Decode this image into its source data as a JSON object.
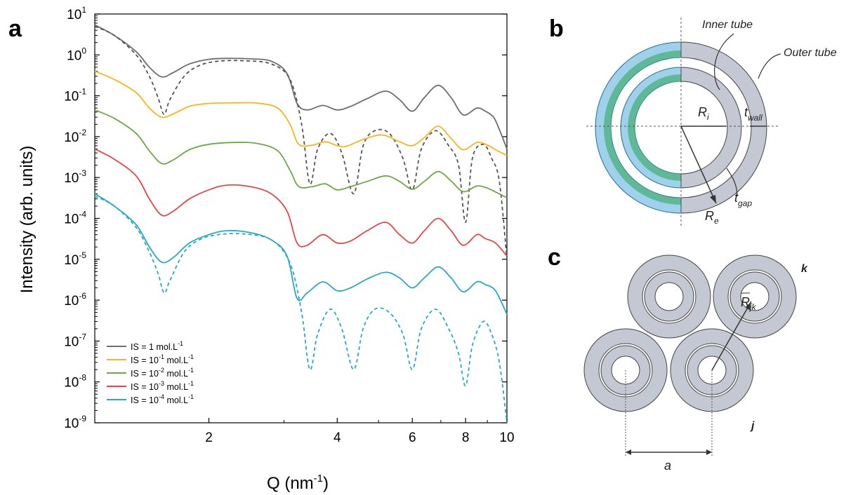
{
  "panels": {
    "a": "a",
    "b": "b",
    "c": "c"
  },
  "chart_data": {
    "type": "line",
    "x_scale": "log",
    "y_scale": "log",
    "xlim": [
      1.08,
      10
    ],
    "ylim": [
      1e-09,
      10
    ],
    "xlabel_main": "Q (nm",
    "xlabel_sup": "-1",
    "xlabel_end": ")",
    "ylabel": "Intensity (arb. units)",
    "x_ticks": [
      {
        "value": 2,
        "label": "2"
      },
      {
        "value": 4,
        "label": "4"
      },
      {
        "value": 6,
        "label": "6"
      },
      {
        "value": 8,
        "label": "8"
      },
      {
        "value": 10,
        "label": "10"
      }
    ],
    "y_ticks": [
      {
        "value": 10,
        "base": "10",
        "exp": "1"
      },
      {
        "value": 1,
        "base": "10",
        "exp": "0"
      },
      {
        "value": 0.1,
        "base": "10",
        "exp": "-1"
      },
      {
        "value": 0.01,
        "base": "10",
        "exp": "-2"
      },
      {
        "value": 0.001,
        "base": "10",
        "exp": "-3"
      },
      {
        "value": 0.0001,
        "base": "10",
        "exp": "-4"
      },
      {
        "value": 1e-05,
        "base": "10",
        "exp": "-5"
      },
      {
        "value": 1e-06,
        "base": "10",
        "exp": "-6"
      },
      {
        "value": 1e-07,
        "base": "10",
        "exp": "-7"
      },
      {
        "value": 1e-08,
        "base": "10",
        "exp": "-8"
      },
      {
        "value": 1e-09,
        "base": "10",
        "exp": "-9"
      }
    ],
    "legend_position": "bottom-left",
    "series": [
      {
        "name": "IS = 1 mol.L-1",
        "legend_pre": "IS = 1 mol.L",
        "legend_sup": "-1",
        "legend_mid": "",
        "legend_sup2": "",
        "color": "#6d6d6d",
        "dash": false,
        "points": [
          [
            1.08,
            5.4
          ],
          [
            1.2,
            3.0
          ],
          [
            1.35,
            1.2
          ],
          [
            1.45,
            0.5
          ],
          [
            1.55,
            0.29
          ],
          [
            1.65,
            0.37
          ],
          [
            1.8,
            0.6
          ],
          [
            2.0,
            0.78
          ],
          [
            2.2,
            0.82
          ],
          [
            2.5,
            0.8
          ],
          [
            2.8,
            0.7
          ],
          [
            3.05,
            0.35
          ],
          [
            3.22,
            0.065
          ],
          [
            3.4,
            0.045
          ],
          [
            3.7,
            0.058
          ],
          [
            4.0,
            0.045
          ],
          [
            4.3,
            0.055
          ],
          [
            4.7,
            0.085
          ],
          [
            5.2,
            0.13
          ],
          [
            5.6,
            0.08
          ],
          [
            6.0,
            0.042
          ],
          [
            6.4,
            0.09
          ],
          [
            6.9,
            0.18
          ],
          [
            7.4,
            0.09
          ],
          [
            7.9,
            0.034
          ],
          [
            8.5,
            0.05
          ],
          [
            8.9,
            0.042
          ],
          [
            9.3,
            0.03
          ],
          [
            9.6,
            0.015
          ],
          [
            10.0,
            0.005
          ]
        ]
      },
      {
        "name": "",
        "legend_pre": "",
        "legend_sup": "",
        "legend_mid": "",
        "legend_sup2": "",
        "color": "#555555",
        "dash": true,
        "points": [
          [
            1.08,
            5.0
          ],
          [
            1.2,
            3.0
          ],
          [
            1.35,
            1.0
          ],
          [
            1.45,
            0.3
          ],
          [
            1.52,
            0.09
          ],
          [
            1.57,
            0.035
          ],
          [
            1.62,
            0.08
          ],
          [
            1.75,
            0.3
          ],
          [
            1.9,
            0.55
          ],
          [
            2.1,
            0.7
          ],
          [
            2.4,
            0.72
          ],
          [
            2.8,
            0.6
          ],
          [
            3.1,
            0.25
          ],
          [
            3.3,
            0.02
          ],
          [
            3.45,
            0.0007
          ],
          [
            3.6,
            0.005
          ],
          [
            3.85,
            0.012
          ],
          [
            4.1,
            0.004
          ],
          [
            4.37,
            0.0004
          ],
          [
            4.6,
            0.006
          ],
          [
            4.9,
            0.014
          ],
          [
            5.3,
            0.012
          ],
          [
            5.7,
            0.003
          ],
          [
            6.0,
            0.0005
          ],
          [
            6.3,
            0.005
          ],
          [
            6.8,
            0.014
          ],
          [
            7.3,
            0.006
          ],
          [
            7.7,
            0.002
          ],
          [
            8.0,
            8e-05
          ],
          [
            8.3,
            0.003
          ],
          [
            8.8,
            0.0065
          ],
          [
            9.2,
            0.003
          ],
          [
            9.6,
            0.0008
          ],
          [
            10.0,
            1e-05
          ]
        ]
      },
      {
        "name": "IS = 10-1 mol.L-1",
        "legend_pre": "IS = 10",
        "legend_sup": "-1",
        "legend_mid": " mol.L",
        "legend_sup2": "-1",
        "color": "#f7b51a",
        "dash": false,
        "points": [
          [
            1.08,
            0.4
          ],
          [
            1.2,
            0.25
          ],
          [
            1.35,
            0.12
          ],
          [
            1.45,
            0.05
          ],
          [
            1.55,
            0.03
          ],
          [
            1.65,
            0.036
          ],
          [
            1.8,
            0.055
          ],
          [
            2.0,
            0.065
          ],
          [
            2.3,
            0.067
          ],
          [
            2.6,
            0.066
          ],
          [
            2.9,
            0.05
          ],
          [
            3.1,
            0.02
          ],
          [
            3.25,
            0.0065
          ],
          [
            3.5,
            0.0062
          ],
          [
            3.75,
            0.0075
          ],
          [
            4.0,
            0.006
          ],
          [
            4.2,
            0.0058
          ],
          [
            4.6,
            0.0085
          ],
          [
            5.1,
            0.011
          ],
          [
            5.6,
            0.0075
          ],
          [
            6.0,
            0.006
          ],
          [
            6.4,
            0.0095
          ],
          [
            6.9,
            0.018
          ],
          [
            7.4,
            0.009
          ],
          [
            7.9,
            0.0048
          ],
          [
            8.5,
            0.0072
          ],
          [
            9.0,
            0.0062
          ],
          [
            9.5,
            0.0045
          ],
          [
            10.0,
            0.0035
          ]
        ]
      },
      {
        "name": "IS = 10-2 mol.L-1",
        "legend_pre": "IS = 10",
        "legend_sup": "-2",
        "legend_mid": " mol.L",
        "legend_sup2": "-1",
        "color": "#6ea843",
        "dash": false,
        "points": [
          [
            1.08,
            0.045
          ],
          [
            1.2,
            0.028
          ],
          [
            1.35,
            0.012
          ],
          [
            1.45,
            0.0045
          ],
          [
            1.55,
            0.0022
          ],
          [
            1.65,
            0.0027
          ],
          [
            1.8,
            0.0048
          ],
          [
            2.0,
            0.0065
          ],
          [
            2.3,
            0.0072
          ],
          [
            2.6,
            0.0068
          ],
          [
            2.9,
            0.0045
          ],
          [
            3.1,
            0.0015
          ],
          [
            3.25,
            0.0006
          ],
          [
            3.5,
            0.0006
          ],
          [
            3.75,
            0.0007
          ],
          [
            4.0,
            0.0005
          ],
          [
            4.3,
            0.0006
          ],
          [
            4.7,
            0.0008
          ],
          [
            5.2,
            0.0011
          ],
          [
            5.6,
            0.0008
          ],
          [
            6.0,
            0.00052
          ],
          [
            6.4,
            0.0008
          ],
          [
            6.9,
            0.0014
          ],
          [
            7.4,
            0.00082
          ],
          [
            7.9,
            0.00045
          ],
          [
            8.5,
            0.00062
          ],
          [
            9.0,
            0.00055
          ],
          [
            9.5,
            0.00042
          ],
          [
            10.0,
            0.00032
          ]
        ]
      },
      {
        "name": "IS = 10-3 mol.L-1",
        "legend_pre": "IS = 10",
        "legend_sup": "-3",
        "legend_mid": " mol.L",
        "legend_sup2": "-1",
        "color": "#e8454a",
        "dash": false,
        "points": [
          [
            1.08,
            0.005
          ],
          [
            1.2,
            0.0028
          ],
          [
            1.35,
            0.0011
          ],
          [
            1.45,
            0.0003
          ],
          [
            1.55,
            0.00012
          ],
          [
            1.65,
            0.00015
          ],
          [
            1.8,
            0.0003
          ],
          [
            2.0,
            0.0005
          ],
          [
            2.2,
            0.00065
          ],
          [
            2.5,
            0.0006
          ],
          [
            2.8,
            0.0004
          ],
          [
            3.05,
            0.00015
          ],
          [
            3.22,
            2.5e-05
          ],
          [
            3.4,
            2.2e-05
          ],
          [
            3.7,
            4e-05
          ],
          [
            4.0,
            2.5e-05
          ],
          [
            4.3,
            2.8e-05
          ],
          [
            4.7,
            5e-05
          ],
          [
            5.2,
            8e-05
          ],
          [
            5.6,
            4e-05
          ],
          [
            6.0,
            2.5e-05
          ],
          [
            6.4,
            5e-05
          ],
          [
            6.9,
            0.0001
          ],
          [
            7.4,
            5e-05
          ],
          [
            7.9,
            2.2e-05
          ],
          [
            8.5,
            4e-05
          ],
          [
            8.9,
            3.2e-05
          ],
          [
            9.4,
            2.5e-05
          ],
          [
            10.0,
            1.2e-05
          ]
        ]
      },
      {
        "name": "IS = 10-4 mol.L-1",
        "legend_pre": "IS = 10",
        "legend_sup": "-4",
        "legend_mid": " mol.L",
        "legend_sup2": "-1",
        "color": "#27aac6",
        "dash": false,
        "points": [
          [
            1.08,
            0.0004
          ],
          [
            1.2,
            0.0002
          ],
          [
            1.35,
            7e-05
          ],
          [
            1.45,
            2e-05
          ],
          [
            1.55,
            8.5e-06
          ],
          [
            1.65,
            1.1e-05
          ],
          [
            1.8,
            2.5e-05
          ],
          [
            2.0,
            4e-05
          ],
          [
            2.2,
            5e-05
          ],
          [
            2.5,
            4.5e-05
          ],
          [
            2.8,
            3e-05
          ],
          [
            3.05,
            1.2e-05
          ],
          [
            3.22,
            1.1e-06
          ],
          [
            3.4,
            1.5e-06
          ],
          [
            3.7,
            2.8e-06
          ],
          [
            4.0,
            1.7e-06
          ],
          [
            4.3,
            2e-06
          ],
          [
            4.7,
            3.3e-06
          ],
          [
            5.2,
            4.8e-06
          ],
          [
            5.6,
            3.5e-06
          ],
          [
            6.0,
            2e-06
          ],
          [
            6.4,
            3.5e-06
          ],
          [
            6.9,
            6.5e-06
          ],
          [
            7.4,
            3.5e-06
          ],
          [
            7.9,
            1.6e-06
          ],
          [
            8.5,
            2.8e-06
          ],
          [
            8.9,
            2.4e-06
          ],
          [
            9.4,
            1.7e-06
          ],
          [
            10.0,
            4.5e-07
          ]
        ]
      },
      {
        "name": "",
        "legend_pre": "",
        "legend_sup": "",
        "legend_mid": "",
        "legend_sup2": "",
        "color": "#27aac6",
        "dash": true,
        "points": [
          [
            1.08,
            0.00035
          ],
          [
            1.2,
            0.0002
          ],
          [
            1.35,
            6e-05
          ],
          [
            1.45,
            1.5e-05
          ],
          [
            1.52,
            4.5e-06
          ],
          [
            1.57,
            1.5e-06
          ],
          [
            1.62,
            3e-06
          ],
          [
            1.75,
            1.5e-05
          ],
          [
            1.9,
            3e-05
          ],
          [
            2.1,
            4e-05
          ],
          [
            2.4,
            4.2e-05
          ],
          [
            2.8,
            3e-05
          ],
          [
            3.1,
            8e-06
          ],
          [
            3.3,
            5e-07
          ],
          [
            3.45,
            2e-08
          ],
          [
            3.6,
            1.5e-07
          ],
          [
            3.85,
            6e-07
          ],
          [
            4.1,
            2e-07
          ],
          [
            4.37,
            2e-08
          ],
          [
            4.6,
            2e-07
          ],
          [
            4.9,
            6e-07
          ],
          [
            5.3,
            5e-07
          ],
          [
            5.7,
            1.5e-07
          ],
          [
            6.0,
            2e-08
          ],
          [
            6.3,
            2e-07
          ],
          [
            6.8,
            6e-07
          ],
          [
            7.3,
            2e-07
          ],
          [
            7.7,
            5e-08
          ],
          [
            8.0,
            8e-09
          ],
          [
            8.3,
            8e-08
          ],
          [
            8.8,
            3e-07
          ],
          [
            9.2,
            1.5e-07
          ],
          [
            9.6,
            3e-08
          ],
          [
            10.0,
            1e-09
          ]
        ]
      }
    ]
  },
  "diagram_b": {
    "inner_tube": "Inner tube",
    "outer_tube": "Outer tube",
    "r_i_main": "R",
    "r_i_sub": "i",
    "r_e_main": "R",
    "r_e_sub": "e",
    "t_wall_main": "t",
    "t_wall_sub": "wall",
    "t_gap_main": "t",
    "t_gap_sub": "gap"
  },
  "diagram_c": {
    "k_label": "k",
    "j_label": "j",
    "a_label": "a",
    "rjk_main": "R",
    "rjk_sub": "jk"
  }
}
